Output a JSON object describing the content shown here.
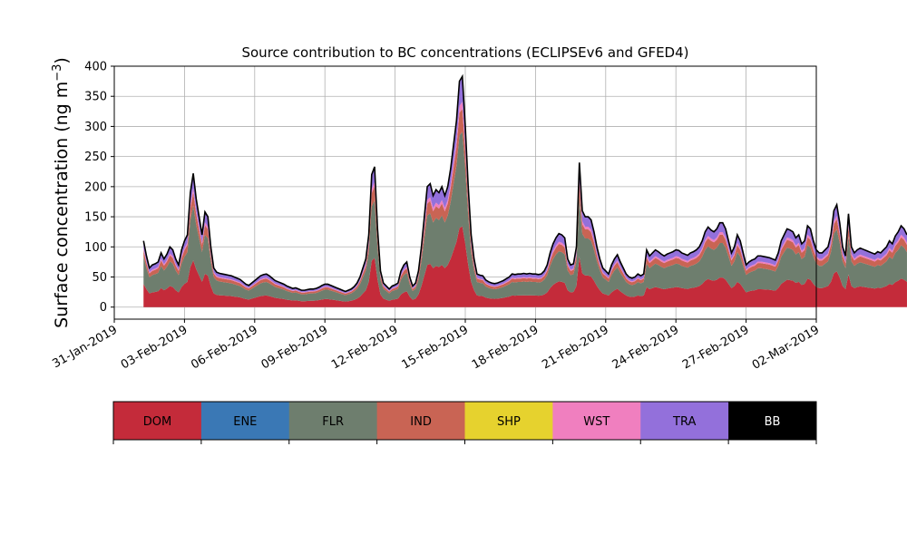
{
  "chart_data": {
    "type": "area",
    "title": "Source contribution to BC concentrations (ECLIPSEv6 and GFED4)",
    "ylabel": "Surface concentration (ng m$^{-3}$)",
    "ylabel_text": "Surface concentration (ng m",
    "ylabel_sup": "−3",
    "ylabel_end": ")",
    "xlim": [
      "2019-01-31T00:00",
      "2019-03-02T00:00"
    ],
    "ylim": [
      -20,
      400
    ],
    "yticks": [
      0,
      50,
      100,
      150,
      200,
      250,
      300,
      350,
      400
    ],
    "xticks": [
      "31-Jan-2019",
      "03-Feb-2019",
      "06-Feb-2019",
      "09-Feb-2019",
      "12-Feb-2019",
      "15-Feb-2019",
      "18-Feb-2019",
      "21-Feb-2019",
      "24-Feb-2019",
      "27-Feb-2019",
      "02-Mar-2019"
    ],
    "xtick_dates": [
      "2019-01-31",
      "2019-02-03",
      "2019-02-06",
      "2019-02-09",
      "2019-02-12",
      "2019-02-15",
      "2019-02-18",
      "2019-02-21",
      "2019-02-24",
      "2019-02-27",
      "2019-03-02"
    ],
    "grid": true,
    "legend_position": "below",
    "start": "2019-02-01T06:00",
    "step_hours": 3,
    "total": [
      110,
      85,
      65,
      70,
      72,
      75,
      90,
      80,
      88,
      100,
      95,
      80,
      70,
      95,
      110,
      120,
      190,
      222,
      180,
      150,
      120,
      158,
      150,
      100,
      65,
      58,
      56,
      55,
      54,
      53,
      52,
      50,
      48,
      46,
      42,
      38,
      36,
      40,
      44,
      48,
      52,
      54,
      55,
      52,
      48,
      44,
      42,
      40,
      38,
      35,
      33,
      31,
      32,
      30,
      28,
      28,
      29,
      30,
      30,
      31,
      33,
      36,
      38,
      38,
      36,
      34,
      32,
      30,
      28,
      26,
      28,
      30,
      34,
      40,
      50,
      65,
      80,
      120,
      220,
      233,
      130,
      60,
      40,
      35,
      30,
      35,
      37,
      40,
      60,
      70,
      75,
      50,
      35,
      40,
      60,
      100,
      150,
      200,
      205,
      185,
      195,
      190,
      200,
      185,
      200,
      230,
      270,
      310,
      375,
      383,
      300,
      200,
      120,
      80,
      55,
      53,
      52,
      45,
      42,
      40,
      39,
      40,
      42,
      44,
      47,
      50,
      55,
      54,
      55,
      55,
      56,
      55,
      56,
      55,
      55,
      54,
      55,
      60,
      70,
      90,
      105,
      115,
      122,
      120,
      115,
      80,
      70,
      72,
      100,
      240,
      160,
      150,
      150,
      145,
      125,
      100,
      80,
      65,
      60,
      55,
      70,
      80,
      87,
      75,
      65,
      55,
      50,
      48,
      50,
      55,
      52,
      55,
      95,
      85,
      90,
      95,
      92,
      88,
      85,
      88,
      90,
      92,
      95,
      94,
      90,
      88,
      86,
      90,
      92,
      95,
      100,
      110,
      125,
      133,
      128,
      125,
      130,
      140,
      140,
      130,
      110,
      90,
      100,
      120,
      110,
      90,
      70,
      75,
      78,
      80,
      85,
      85,
      84,
      83,
      82,
      80,
      78,
      90,
      110,
      120,
      130,
      128,
      125,
      115,
      120,
      105,
      110,
      135,
      130,
      110,
      95,
      90,
      90,
      95,
      100,
      120,
      160,
      170,
      140,
      100,
      85,
      155,
      100,
      90,
      95,
      98,
      96,
      94,
      92,
      90,
      88,
      92,
      90,
      95,
      100,
      110,
      105,
      118,
      125,
      135,
      130,
      120
    ],
    "series": [
      {
        "name": "DOM",
        "color": "#c42b3a",
        "fraction": 0.35
      },
      {
        "name": "ENE",
        "color": "#3a78b5",
        "fraction": 0.0
      },
      {
        "name": "FLR",
        "color": "#6e7e6e",
        "fraction": 0.41
      },
      {
        "name": "IND",
        "color": "#c96454",
        "fraction": 0.1
      },
      {
        "name": "SHP",
        "color": "#e6d22e",
        "fraction": 0.0
      },
      {
        "name": "WST",
        "color": "#f07fbf",
        "fraction": 0.03
      },
      {
        "name": "TRA",
        "color": "#9370db",
        "fraction": 0.11
      },
      {
        "name": "BB",
        "color": "#000000",
        "fraction": 0.0
      }
    ]
  },
  "legend": {
    "items": [
      {
        "label": "DOM",
        "color": "#c42b3a",
        "text_color": "#000000"
      },
      {
        "label": "ENE",
        "color": "#3a78b5",
        "text_color": "#000000"
      },
      {
        "label": "FLR",
        "color": "#6e7e6e",
        "text_color": "#000000"
      },
      {
        "label": "IND",
        "color": "#c96454",
        "text_color": "#000000"
      },
      {
        "label": "SHP",
        "color": "#e6d22e",
        "text_color": "#000000"
      },
      {
        "label": "WST",
        "color": "#f07fbf",
        "text_color": "#000000"
      },
      {
        "label": "TRA",
        "color": "#9370db",
        "text_color": "#000000"
      },
      {
        "label": "BB",
        "color": "#000000",
        "text_color": "#ffffff"
      }
    ]
  }
}
